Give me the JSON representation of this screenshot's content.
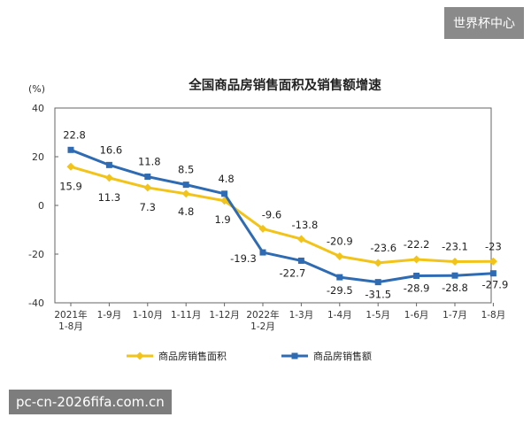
{
  "watermarks": {
    "top_right": "世界杯中心",
    "bottom_left": "pc-cn-2026fifa.com.cn"
  },
  "chart_data": {
    "type": "line",
    "title": "全国商品房销售面积及销售额增速",
    "ylabel": "(%)",
    "ylim": [
      -40,
      40
    ],
    "yticks": [
      40,
      20,
      0,
      -20,
      -40
    ],
    "categories": [
      [
        "2021年",
        "1-8月"
      ],
      [
        "1-9月"
      ],
      [
        "1-10月"
      ],
      [
        "1-11月"
      ],
      [
        "1-12月"
      ],
      [
        "2022年",
        "1-2月"
      ],
      [
        "1-3月"
      ],
      [
        "1-4月"
      ],
      [
        "1-5月"
      ],
      [
        "1-6月"
      ],
      [
        "1-7月"
      ],
      [
        "1-8月"
      ]
    ],
    "series": [
      {
        "name": "商品房销售面积",
        "color": "#f2c318",
        "marker": "diamond",
        "values": [
          15.9,
          11.3,
          7.3,
          4.8,
          1.9,
          -9.6,
          -13.8,
          -20.9,
          -23.6,
          -22.2,
          -23.1,
          -23.0
        ]
      },
      {
        "name": "商品房销售额",
        "color": "#2e6bb3",
        "marker": "square",
        "values": [
          22.8,
          16.6,
          11.8,
          8.5,
          4.8,
          -19.3,
          -22.7,
          -29.5,
          -31.5,
          -28.9,
          -28.8,
          -27.9
        ]
      }
    ],
    "grid": false,
    "legend_position": "bottom"
  }
}
